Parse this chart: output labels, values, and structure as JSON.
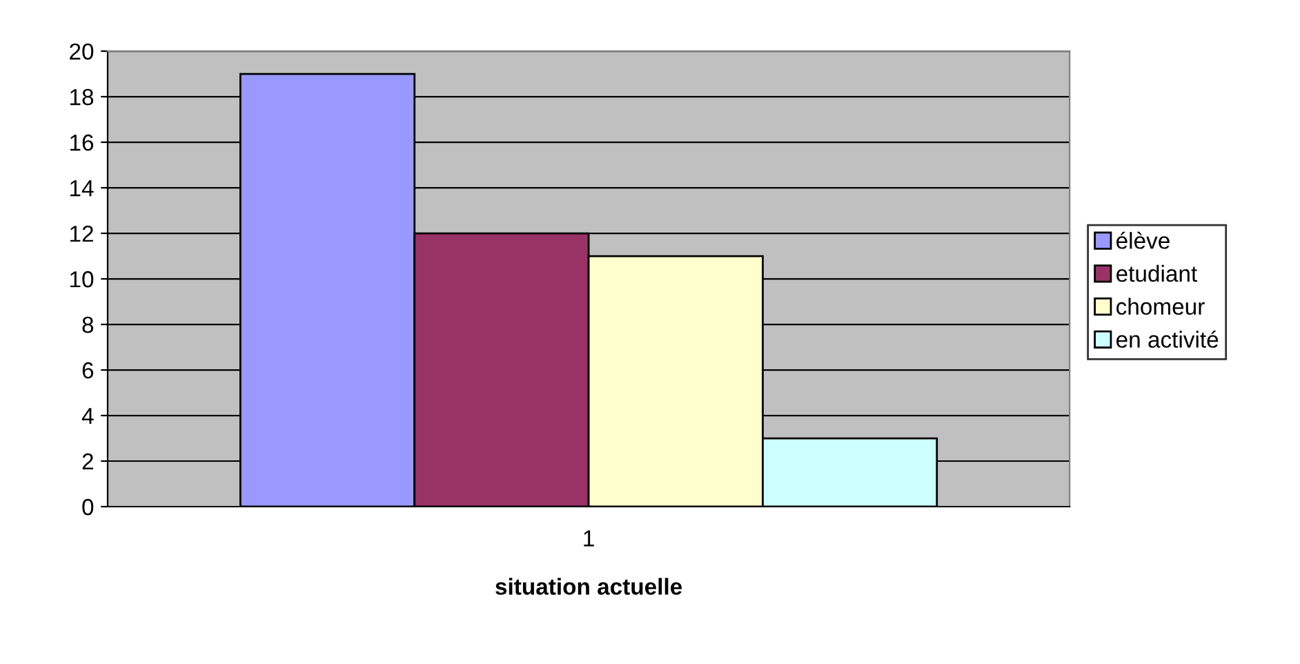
{
  "chart_data": {
    "type": "bar",
    "xlabel": "situation actuelle",
    "categories": [
      "1"
    ],
    "series": [
      {
        "name": "élève",
        "color": "#9999ff",
        "values": [
          19
        ]
      },
      {
        "name": "etudiant",
        "color": "#993366",
        "values": [
          12
        ]
      },
      {
        "name": "chomeur",
        "color": "#ffffcc",
        "values": [
          11
        ]
      },
      {
        "name": "en activité",
        "color": "#ccffff",
        "values": [
          3
        ]
      }
    ],
    "ylim": [
      0,
      20
    ],
    "yticks": [
      0,
      2,
      4,
      6,
      8,
      10,
      12,
      14,
      16,
      18,
      20
    ],
    "grid": "y",
    "legend": "right"
  }
}
